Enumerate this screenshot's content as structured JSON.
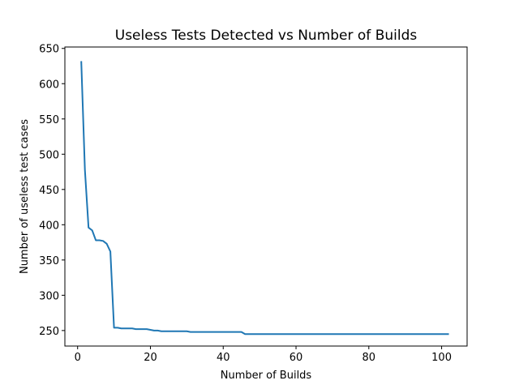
{
  "chart_data": {
    "type": "line",
    "title": "Useless Tests Detected vs Number of Builds",
    "xlabel": "Number of Builds",
    "ylabel": "Number of useless test cases",
    "xlim": [
      -3.5,
      107
    ],
    "ylim": [
      228,
      652
    ],
    "xticks": [
      0,
      20,
      40,
      60,
      80,
      100
    ],
    "yticks": [
      250,
      300,
      350,
      400,
      450,
      500,
      550,
      600,
      650
    ],
    "grid": false,
    "legend": "none",
    "series": [
      {
        "color": "#1f77b4",
        "x": [
          1,
          2,
          3,
          4,
          5,
          6,
          7,
          8,
          9,
          10,
          11,
          12,
          13,
          14,
          15,
          16,
          17,
          18,
          19,
          20,
          21,
          22,
          23,
          24,
          25,
          26,
          27,
          28,
          29,
          30,
          31,
          32,
          33,
          34,
          35,
          36,
          37,
          38,
          39,
          40,
          41,
          42,
          43,
          44,
          45,
          46,
          47,
          48,
          49,
          50,
          55,
          60,
          65,
          70,
          75,
          80,
          85,
          90,
          95,
          100,
          102
        ],
        "y": [
          632,
          478,
          396,
          392,
          378,
          378,
          377,
          373,
          362,
          254,
          254,
          253,
          253,
          253,
          253,
          252,
          252,
          252,
          252,
          251,
          250,
          250,
          249,
          249,
          249,
          249,
          249,
          249,
          249,
          249,
          248,
          248,
          248,
          248,
          248,
          248,
          248,
          248,
          248,
          248,
          248,
          248,
          248,
          248,
          248,
          245,
          245,
          245,
          245,
          245,
          245,
          245,
          245,
          245,
          245,
          245,
          245,
          245,
          245,
          245,
          245
        ]
      }
    ]
  }
}
